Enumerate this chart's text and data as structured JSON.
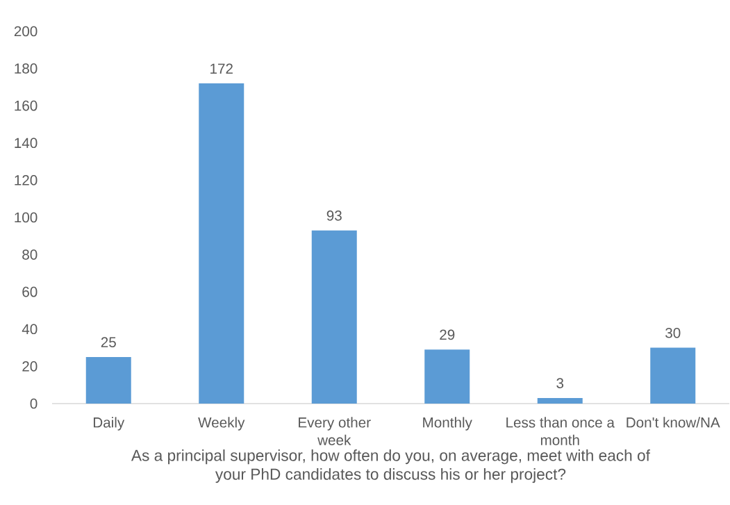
{
  "chart_data": {
    "type": "bar",
    "xlabel": "As a principal supervisor, how often do you, on average, meet with each of your PhD candidates to discuss his or her project?",
    "categories": [
      "Daily",
      "Weekly",
      "Every other week",
      "Monthly",
      "Less than once a month",
      "Don't know/NA"
    ],
    "values": [
      25,
      172,
      93,
      29,
      3,
      30
    ],
    "color": "#5b9bd5",
    "ylim": [
      0,
      200
    ],
    "yticks": [
      0,
      20,
      40,
      60,
      80,
      100,
      120,
      140,
      160,
      180,
      200
    ],
    "data_labels": true
  }
}
